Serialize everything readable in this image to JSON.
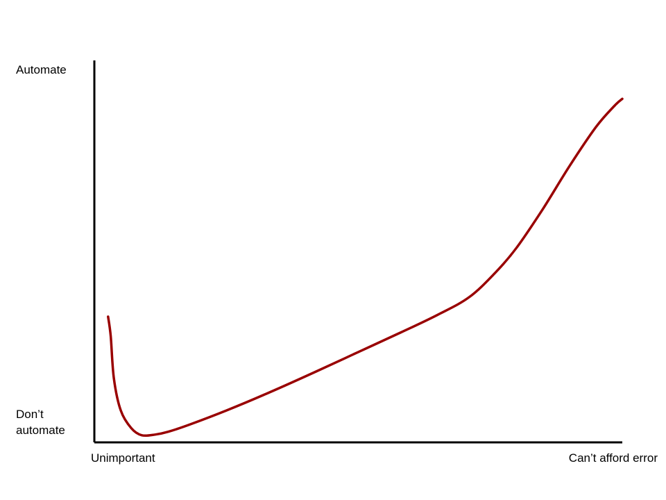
{
  "chart_data": {
    "type": "line",
    "title": "",
    "xlabel": "",
    "ylabel": "",
    "x_tick_labels": [
      "Unimportant",
      "Can’t afford error"
    ],
    "y_tick_labels": [
      "Automate",
      "Don’t automate"
    ],
    "xlim": [
      0,
      1
    ],
    "ylim": [
      0,
      1
    ],
    "grid": false,
    "legend": "none",
    "series": [
      {
        "color": "#990000",
        "x": [
          0.026,
          0.031,
          0.037,
          0.05,
          0.07,
          0.09,
          0.115,
          0.14,
          0.18,
          0.25,
          0.33,
          0.42,
          0.5,
          0.58,
          0.65,
          0.71,
          0.76,
          0.8,
          0.85,
          0.9,
          0.95,
          0.985,
          1.0
        ],
        "y": [
          0.355,
          0.3,
          0.18,
          0.09,
          0.04,
          0.02,
          0.022,
          0.03,
          0.05,
          0.09,
          0.14,
          0.2,
          0.255,
          0.31,
          0.36,
          0.41,
          0.48,
          0.55,
          0.66,
          0.78,
          0.89,
          0.95,
          0.97
        ]
      }
    ]
  }
}
